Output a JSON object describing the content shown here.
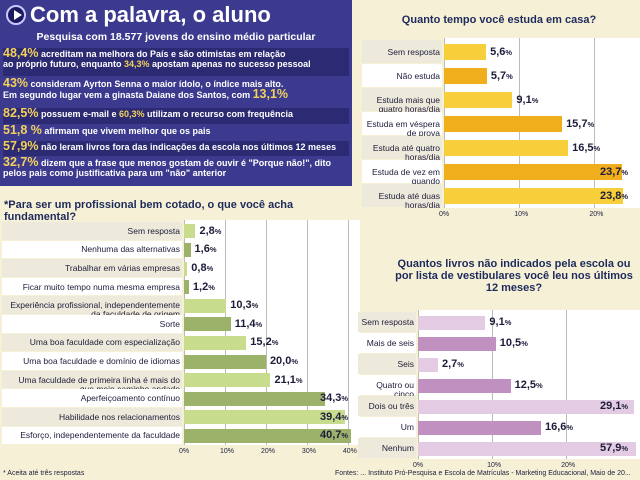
{
  "header": {
    "title": "Com a palavra, o aluno",
    "subtitle": "Pesquisa com 18.577 jovens do ensino médio particular",
    "highlights": [
      {
        "big": "48,4%",
        "text": " acreditam na melhora do País e são otimistas em relação",
        "line2_pre": "ao próprio futuro, enquanto ",
        "line2_inline": "34,3%",
        "line2_post": " apostam apenas no sucesso pessoal"
      },
      {
        "big": "43%",
        "text": " consideram Ayrton Senna o maior ídolo, o índice mais alto.",
        "line2_pre": "Em segundo lugar vem a ginasta Daiane dos Santos, com ",
        "line2_big": "13,1%"
      },
      {
        "big": "82,5%",
        "text": " possuem e-mail e ",
        "inline": "60,3%",
        "text2": " utilizam o recurso com frequência"
      },
      {
        "big": "51,8 %",
        "text": " afirmam que vivem melhor que os pais"
      },
      {
        "big": "57,9%",
        "text": " não leram livros fora das indicações da escola nos últimos 12 meses"
      },
      {
        "big": "32,7%",
        "text": " dizem que a frase que menos gostam de ouvir é \"Porque não!\", dito",
        "line2_pre": "pelos pais como justificativa para um \"não\" anterior"
      }
    ]
  },
  "chart_data": [
    {
      "type": "bar",
      "orientation": "horizontal",
      "title": "Quanto tempo você estuda em casa?",
      "categories": [
        "Sem resposta",
        "Não estuda",
        "Estuda mais que quatro horas/dia",
        "Estuda em véspera de prova",
        "Estuda até quatro horas/dia",
        "Estuda de vez em quando",
        "Estuda até duas horas/dia"
      ],
      "values": [
        5.6,
        5.7,
        9.1,
        15.7,
        16.5,
        23.7,
        23.8
      ],
      "value_labels": [
        "5,6%",
        "5,7%",
        "9,1%",
        "15,7%",
        "16,5%",
        "23,7%",
        "23,8%"
      ],
      "xticks": [
        "0%",
        "10%",
        "20%"
      ],
      "xlim": [
        0,
        25
      ],
      "bar_color": "#f0ad1c",
      "alt_color": "#f7cf3a",
      "grid": true
    },
    {
      "type": "bar",
      "orientation": "horizontal",
      "title": "*Para ser um profissional bem cotado, o que você acha  fundamental?",
      "categories": [
        "Sem resposta",
        "Nenhuma das alternativas",
        "Trabalhar em várias empresas",
        "Ficar muito tempo numa mesma empresa",
        "Experiência profissional, independentemente da faculdade de origem",
        "Sorte",
        "Uma boa faculdade com especialização",
        "Uma boa faculdade e domínio de idiomas",
        "Uma faculdade de primeira linha é mais do que meio caminho andado",
        "Aperfeiçoamento contínuo",
        "Habilidade nos relacionamentos",
        "Esforço, independentemente da faculdade"
      ],
      "values": [
        2.8,
        1.6,
        0.8,
        1.2,
        10.3,
        11.4,
        15.2,
        20.0,
        21.1,
        34.3,
        39.4,
        40.7
      ],
      "value_labels": [
        "2,8%",
        "1,6%",
        "0,8%",
        "1,2%",
        "10,3%",
        "11,4%",
        "15,2%",
        "20,0%",
        "21,1%",
        "34,3%",
        "39,4%",
        "40,7%"
      ],
      "xticks": [
        "0%",
        "10%",
        "20%",
        "30%",
        "40%"
      ],
      "xlim": [
        0,
        41
      ],
      "bar_color": "#9cb26a",
      "alt_color": "#c8dc8e",
      "grid": true
    },
    {
      "type": "bar",
      "orientation": "horizontal",
      "title": "Quantos livros não indicados pela escola ou por lista de vestibulares você leu nos últimos 12 meses?",
      "categories": [
        "Sem resposta",
        "Mais de seis",
        "Seis",
        "Quatro ou cinco",
        "Dois ou três",
        "Um",
        "Nenhum"
      ],
      "values": [
        9.1,
        10.5,
        2.7,
        12.5,
        29.1,
        16.6,
        57.9
      ],
      "value_labels": [
        "9,1%",
        "10,5%",
        "2,7%",
        "12,5%",
        "29,1%",
        "16,6%",
        "57,9%"
      ],
      "xticks": [
        "0%",
        "10%",
        "20%"
      ],
      "bar_color": "#c090c0",
      "alt_color": "#e3cce3",
      "grid": true
    }
  ],
  "footnote": "* Aceita até três respostas",
  "sources": "Fontes: ... Instituto Pró-Pesquisa e Escola de Matrículas - Marketing Educacional, Maio de 20..."
}
